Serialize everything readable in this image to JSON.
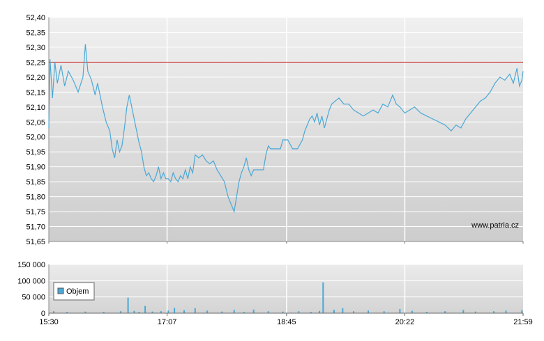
{
  "chart_data": [
    {
      "type": "line",
      "title": "",
      "xlabel": "",
      "ylabel": "",
      "ylim": [
        51.65,
        52.4
      ],
      "y_ticks": [
        "51,65",
        "51,70",
        "51,75",
        "51,80",
        "51,85",
        "51,90",
        "51,95",
        "52,00",
        "52,05",
        "52,10",
        "52,15",
        "52,20",
        "52,25",
        "52,30",
        "52,35",
        "52,40"
      ],
      "x_ticks": [
        "15:30",
        "17:07",
        "18:45",
        "20:22",
        "21:59"
      ],
      "grid": true,
      "reference_line": {
        "value": 52.25,
        "color": "#cc3333"
      },
      "watermark": "www.patria.cz",
      "series": [
        {
          "color": "#4aa8d6",
          "points": [
            [
              "15:30",
              52.03
            ],
            [
              "15:31",
              52.26
            ],
            [
              "15:33",
              52.13
            ],
            [
              "15:35",
              52.25
            ],
            [
              "15:37",
              52.18
            ],
            [
              "15:40",
              52.24
            ],
            [
              "15:43",
              52.17
            ],
            [
              "15:46",
              52.22
            ],
            [
              "15:50",
              52.19
            ],
            [
              "15:54",
              52.15
            ],
            [
              "15:58",
              52.2
            ],
            [
              "16:00",
              52.31
            ],
            [
              "16:02",
              52.22
            ],
            [
              "16:05",
              52.19
            ],
            [
              "16:08",
              52.14
            ],
            [
              "16:10",
              52.18
            ],
            [
              "16:12",
              52.14
            ],
            [
              "16:14",
              52.1
            ],
            [
              "16:17",
              52.05
            ],
            [
              "16:20",
              52.02
            ],
            [
              "16:22",
              51.96
            ],
            [
              "16:24",
              51.93
            ],
            [
              "16:26",
              51.99
            ],
            [
              "16:28",
              51.95
            ],
            [
              "16:30",
              51.97
            ],
            [
              "16:32",
              52.03
            ],
            [
              "16:34",
              52.1
            ],
            [
              "16:36",
              52.14
            ],
            [
              "16:38",
              52.1
            ],
            [
              "16:40",
              52.06
            ],
            [
              "16:42",
              52.02
            ],
            [
              "16:44",
              51.98
            ],
            [
              "16:46",
              51.95
            ],
            [
              "16:48",
              51.9
            ],
            [
              "16:50",
              51.87
            ],
            [
              "16:52",
              51.88
            ],
            [
              "16:54",
              51.86
            ],
            [
              "16:56",
              51.85
            ],
            [
              "16:58",
              51.87
            ],
            [
              "17:00",
              51.9
            ],
            [
              "17:02",
              51.86
            ],
            [
              "17:04",
              51.88
            ],
            [
              "17:06",
              51.86
            ],
            [
              "17:08",
              51.86
            ],
            [
              "17:10",
              51.85
            ],
            [
              "17:12",
              51.88
            ],
            [
              "17:14",
              51.86
            ],
            [
              "17:16",
              51.85
            ],
            [
              "17:18",
              51.87
            ],
            [
              "17:20",
              51.86
            ],
            [
              "17:22",
              51.89
            ],
            [
              "17:24",
              51.86
            ],
            [
              "17:26",
              51.9
            ],
            [
              "17:28",
              51.88
            ],
            [
              "17:30",
              51.94
            ],
            [
              "17:33",
              51.93
            ],
            [
              "17:36",
              51.94
            ],
            [
              "17:39",
              51.92
            ],
            [
              "17:42",
              51.91
            ],
            [
              "17:45",
              51.92
            ],
            [
              "17:48",
              51.89
            ],
            [
              "17:51",
              51.87
            ],
            [
              "17:54",
              51.85
            ],
            [
              "17:57",
              51.8
            ],
            [
              "18:00",
              51.77
            ],
            [
              "18:02",
              51.75
            ],
            [
              "18:04",
              51.8
            ],
            [
              "18:06",
              51.85
            ],
            [
              "18:08",
              51.88
            ],
            [
              "18:10",
              51.9
            ],
            [
              "18:12",
              51.93
            ],
            [
              "18:14",
              51.89
            ],
            [
              "18:16",
              51.87
            ],
            [
              "18:18",
              51.89
            ],
            [
              "18:22",
              51.89
            ],
            [
              "18:26",
              51.89
            ],
            [
              "18:28",
              51.94
            ],
            [
              "18:30",
              51.97
            ],
            [
              "18:32",
              51.96
            ],
            [
              "18:36",
              51.96
            ],
            [
              "18:40",
              51.96
            ],
            [
              "18:42",
              51.99
            ],
            [
              "18:46",
              51.99
            ],
            [
              "18:50",
              51.96
            ],
            [
              "18:54",
              51.96
            ],
            [
              "18:58",
              51.99
            ],
            [
              "19:00",
              52.02
            ],
            [
              "19:02",
              52.04
            ],
            [
              "19:04",
              52.06
            ],
            [
              "19:06",
              52.07
            ],
            [
              "19:08",
              52.05
            ],
            [
              "19:10",
              52.08
            ],
            [
              "19:12",
              52.04
            ],
            [
              "19:14",
              52.07
            ],
            [
              "19:16",
              52.03
            ],
            [
              "19:18",
              52.06
            ],
            [
              "19:20",
              52.09
            ],
            [
              "19:22",
              52.11
            ],
            [
              "19:25",
              52.12
            ],
            [
              "19:28",
              52.13
            ],
            [
              "19:32",
              52.11
            ],
            [
              "19:36",
              52.11
            ],
            [
              "19:40",
              52.09
            ],
            [
              "19:44",
              52.08
            ],
            [
              "19:48",
              52.07
            ],
            [
              "19:52",
              52.08
            ],
            [
              "19:56",
              52.09
            ],
            [
              "20:00",
              52.08
            ],
            [
              "20:04",
              52.11
            ],
            [
              "20:08",
              52.1
            ],
            [
              "20:12",
              52.14
            ],
            [
              "20:15",
              52.11
            ],
            [
              "20:18",
              52.1
            ],
            [
              "20:22",
              52.08
            ],
            [
              "20:26",
              52.09
            ],
            [
              "20:30",
              52.1
            ],
            [
              "20:35",
              52.08
            ],
            [
              "20:40",
              52.07
            ],
            [
              "20:45",
              52.06
            ],
            [
              "20:50",
              52.05
            ],
            [
              "20:55",
              52.04
            ],
            [
              "21:00",
              52.02
            ],
            [
              "21:04",
              52.04
            ],
            [
              "21:08",
              52.03
            ],
            [
              "21:12",
              52.06
            ],
            [
              "21:16",
              52.08
            ],
            [
              "21:20",
              52.1
            ],
            [
              "21:24",
              52.12
            ],
            [
              "21:28",
              52.13
            ],
            [
              "21:32",
              52.15
            ],
            [
              "21:36",
              52.18
            ],
            [
              "21:40",
              52.2
            ],
            [
              "21:44",
              52.19
            ],
            [
              "21:48",
              52.21
            ],
            [
              "21:51",
              52.18
            ],
            [
              "21:54",
              52.23
            ],
            [
              "21:56",
              52.17
            ],
            [
              "21:58",
              52.19
            ],
            [
              "21:59",
              52.22
            ]
          ]
        }
      ]
    },
    {
      "type": "bar",
      "title": "",
      "xlabel": "",
      "ylabel": "",
      "ylim": [
        0,
        150000
      ],
      "y_ticks": [
        "0",
        "50 000",
        "100 000",
        "150 000"
      ],
      "x_ticks": [
        "15:30",
        "17:07",
        "18:45",
        "20:22",
        "21:59"
      ],
      "grid": true,
      "legend": {
        "placement": "left",
        "label": "Objem"
      },
      "series": [
        {
          "name": "Objem",
          "color": "#4aa8d6",
          "points": [
            [
              "15:34",
              6000
            ],
            [
              "15:45",
              4000
            ],
            [
              "16:00",
              5000
            ],
            [
              "16:15",
              4000
            ],
            [
              "16:29",
              6000
            ],
            [
              "16:35",
              48000
            ],
            [
              "16:40",
              7000
            ],
            [
              "16:44",
              4000
            ],
            [
              "16:49",
              22000
            ],
            [
              "16:55",
              5000
            ],
            [
              "17:02",
              6000
            ],
            [
              "17:08",
              8000
            ],
            [
              "17:13",
              16000
            ],
            [
              "17:21",
              9000
            ],
            [
              "17:30",
              15000
            ],
            [
              "17:40",
              8000
            ],
            [
              "17:52",
              5000
            ],
            [
              "18:02",
              10000
            ],
            [
              "18:10",
              4000
            ],
            [
              "18:18",
              11000
            ],
            [
              "18:30",
              6000
            ],
            [
              "18:42",
              5000
            ],
            [
              "18:55",
              6000
            ],
            [
              "19:05",
              4000
            ],
            [
              "19:12",
              7000
            ],
            [
              "19:15",
              95000
            ],
            [
              "19:24",
              10000
            ],
            [
              "19:31",
              15000
            ],
            [
              "19:40",
              6000
            ],
            [
              "19:52",
              8000
            ],
            [
              "20:05",
              6000
            ],
            [
              "20:18",
              13000
            ],
            [
              "20:28",
              7000
            ],
            [
              "20:40",
              4000
            ],
            [
              "20:55",
              6000
            ],
            [
              "21:10",
              10000
            ],
            [
              "21:20",
              5000
            ],
            [
              "21:35",
              6000
            ],
            [
              "21:45",
              8000
            ],
            [
              "21:58",
              9000
            ]
          ]
        }
      ]
    }
  ]
}
